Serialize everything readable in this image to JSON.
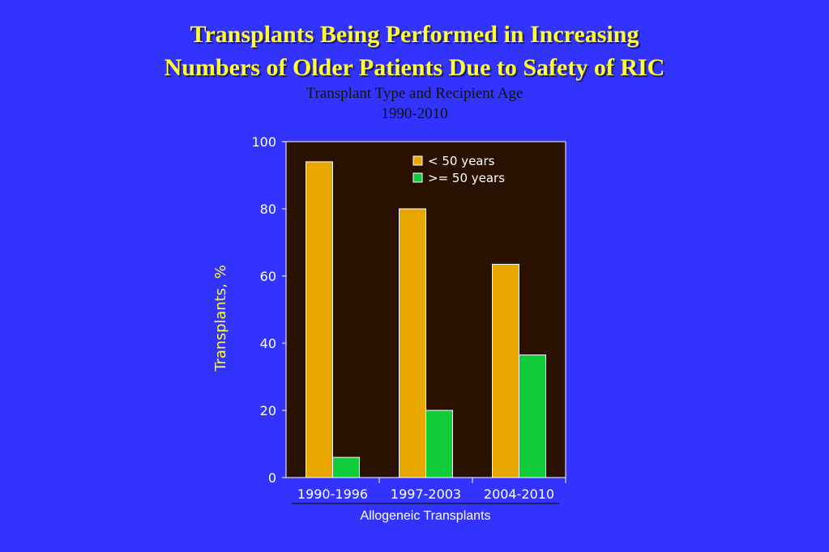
{
  "header": {
    "title_line1": "Transplants Being Performed in Increasing",
    "title_line2": "Numbers of Older Patients Due to Safety of RIC",
    "subtitle_line1": "Transplant Type and Recipient Age",
    "subtitle_line2": "1990-2010"
  },
  "colors": {
    "background": "#3333ff",
    "plot_bg": "#2a1000",
    "series_under50": "#e8a800",
    "series_over50": "#11cc3a",
    "title": "#ffff33"
  },
  "chart_data": {
    "type": "bar",
    "title": "Transplants Being Performed in Increasing Numbers of Older Patients Due to Safety of RIC",
    "subtitle": "Transplant Type and Recipient Age 1990-2010",
    "categories": [
      "1990-1996",
      "1997-2003",
      "2004-2010"
    ],
    "series": [
      {
        "name": "< 50 years",
        "values": [
          94,
          80,
          63.5
        ]
      },
      {
        "name": ">= 50 years",
        "values": [
          6,
          20,
          36.5
        ]
      }
    ],
    "xlabel": "Allogeneic Transplants",
    "ylabel": "Transplants, %",
    "ylim": [
      0,
      100
    ],
    "yticks": [
      0,
      20,
      40,
      60,
      80,
      100
    ],
    "grid": false,
    "legend_position": "top-right"
  }
}
